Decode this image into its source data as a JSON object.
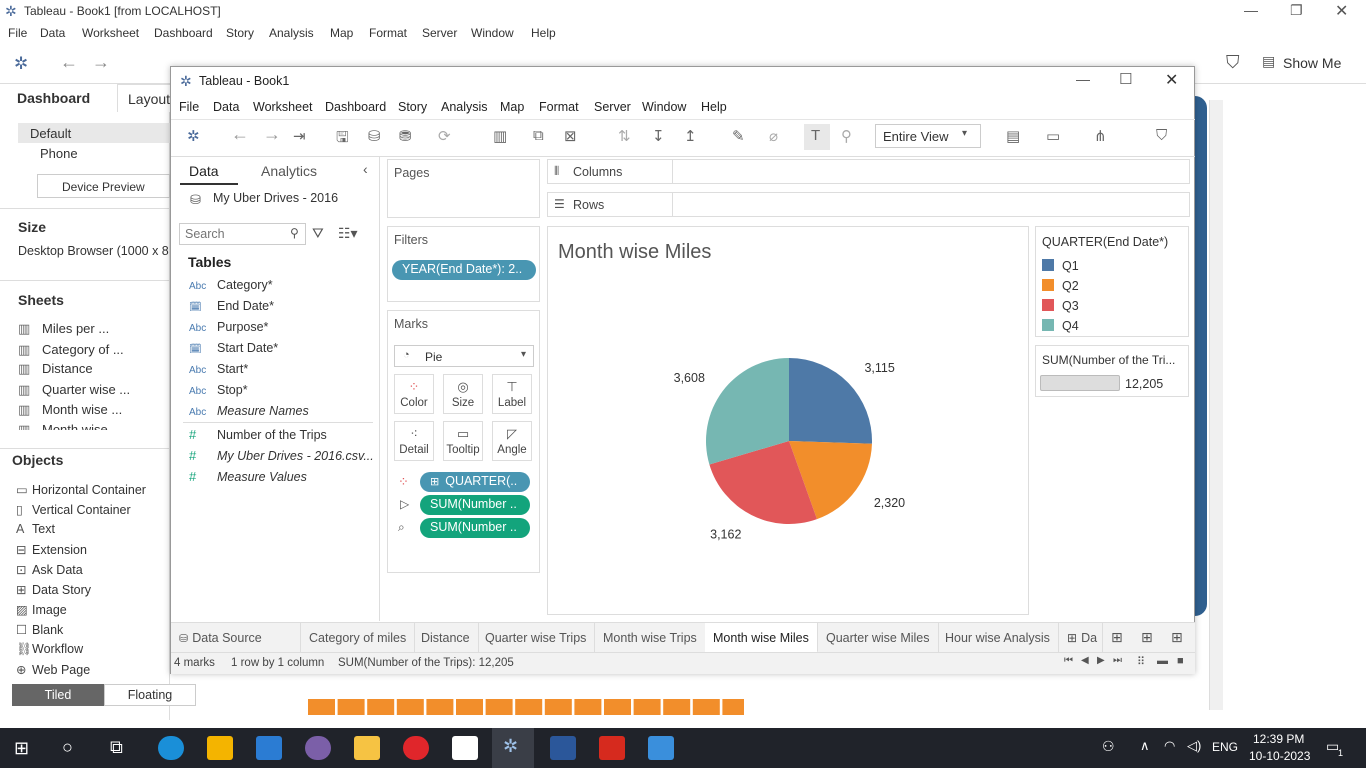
{
  "outer": {
    "title": "Tableau - Book1 [from LOCALHOST]",
    "menu": [
      "File",
      "Data",
      "Worksheet",
      "Dashboard",
      "Story",
      "Analysis",
      "Map",
      "Format",
      "Server",
      "Window",
      "Help"
    ],
    "show_me": "Show Me",
    "left": {
      "tab_dashboard": "Dashboard",
      "tab_layout": "Layout",
      "device_default": "Default",
      "device_phone": "Phone",
      "device_preview": "Device Preview",
      "size_title": "Size",
      "size_value": "Desktop Browser (1000 x 8",
      "sheets_title": "Sheets",
      "sheets": [
        "Miles per ...",
        "Category of ...",
        "Distance",
        "Quarter wise ...",
        "Month wise ...",
        "Month wise ..."
      ],
      "objects_title": "Objects",
      "objects": [
        "Horizontal Container",
        "Vertical Container",
        "Text",
        "Extension",
        "Ask Data",
        "Data Story",
        "Image",
        "Blank",
        "Workflow",
        "Web Page"
      ],
      "tiled": "Tiled",
      "floating": "Floating"
    }
  },
  "inner": {
    "title": "Tableau - Book1",
    "menu": [
      "File",
      "Data",
      "Worksheet",
      "Dashboard",
      "Story",
      "Analysis",
      "Map",
      "Format",
      "Server",
      "Window",
      "Help"
    ],
    "fit_select": "Entire View",
    "data_tab": "Data",
    "analytics_tab": "Analytics",
    "datasource": "My Uber Drives - 2016",
    "search_placeholder": "Search",
    "tables_title": "Tables",
    "fields": [
      {
        "type": "Abc",
        "name": "Category*"
      },
      {
        "type": "date",
        "name": "End Date*"
      },
      {
        "type": "Abc",
        "name": "Purpose*"
      },
      {
        "type": "date",
        "name": "Start Date*"
      },
      {
        "type": "Abc",
        "name": "Start*"
      },
      {
        "type": "Abc",
        "name": "Stop*"
      },
      {
        "type": "Abc",
        "name": "Measure Names"
      },
      {
        "type": "#",
        "name": "Number of the Trips"
      },
      {
        "type": "#",
        "name": "My Uber Drives - 2016.csv..."
      },
      {
        "type": "#",
        "name": "Measure Values"
      }
    ],
    "pages_title": "Pages",
    "filters_title": "Filters",
    "filter_pill": "YEAR(End Date*): 2..",
    "marks_title": "Marks",
    "mark_type": "Pie",
    "mark_buttons": [
      "Color",
      "Size",
      "Label",
      "Detail",
      "Tooltip",
      "Angle"
    ],
    "mark_pills": [
      "QUARTER(..",
      "SUM(Number ..",
      "SUM(Number .."
    ],
    "columns_label": "Columns",
    "rows_label": "Rows",
    "legend_title": "QUARTER(End Date*)",
    "size_legend_title": "SUM(Number of the Tri...",
    "size_legend_value": "12,205",
    "tabs": [
      "Data Source",
      "Category of miles",
      "Distance",
      "Quarter wise Trips",
      "Month wise Trips",
      "Month wise Miles",
      "Quarter wise Miles",
      "Hour wise Analysis",
      "Da"
    ],
    "active_tab": "Month wise Miles",
    "status": {
      "marks": "4 marks",
      "dims": "1 row by 1 column",
      "sum": "SUM(Number of the Trips): 12,205"
    }
  },
  "colors": {
    "q1": "#4e79a7",
    "q2": "#f28e2b",
    "q3": "#e15759",
    "q4": "#76b7b2",
    "pill_blue": "#4996b2",
    "pill_green": "#13a47c"
  },
  "chart_data": {
    "type": "pie",
    "title": "Month wise Miles",
    "legend_title": "QUARTER(End Date*)",
    "categories": [
      "Q1",
      "Q2",
      "Q3",
      "Q4"
    ],
    "values": [
      3115,
      2320,
      3162,
      3608
    ],
    "labels": [
      "3,115",
      "2,320",
      "3,162",
      "3,608"
    ],
    "legend_placement": "right"
  },
  "taskbar": {
    "lang": "ENG",
    "time": "12:39 PM",
    "date": "10-10-2023",
    "notif": "1"
  }
}
